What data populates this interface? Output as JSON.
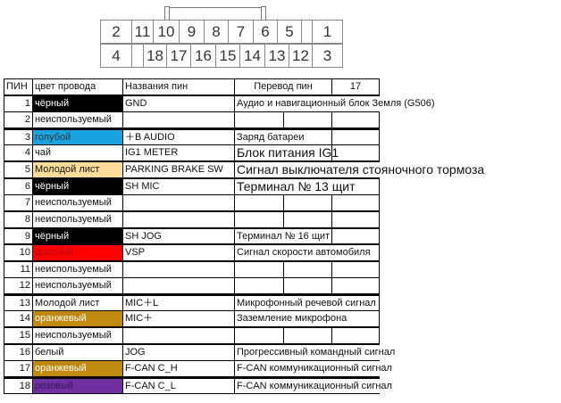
{
  "connector": {
    "left": [
      "2",
      "4"
    ],
    "right": [
      "1",
      "3"
    ],
    "top": [
      "11",
      "10",
      "9",
      "8",
      "7",
      "6",
      "5",
      ""
    ],
    "bottom": [
      "",
      "18",
      "17",
      "16",
      "15",
      "14",
      "13",
      "12"
    ]
  },
  "table": {
    "headers": {
      "pin": "ПИН",
      "color": "цвет провода",
      "name": "Названия пин",
      "translation": "Перевод пин",
      "count": "17"
    },
    "rows": [
      {
        "pin": "1",
        "color": "чёрный",
        "bg": "#000000",
        "fg": "#ffffff",
        "name": "GND",
        "translation": "Аудио и навигационный блок  Земля (G506)"
      },
      {
        "pin": "2",
        "color": "неиспользуемый",
        "bg": "#ffffff",
        "fg": "#111111",
        "name": "",
        "translation": ""
      },
      {
        "pin": "3",
        "color": "голубой",
        "bg": "#1ba3e0",
        "fg": "#333333",
        "name": "＋B AUDIO",
        "translation": "Заряд батареи"
      },
      {
        "pin": "4",
        "color": "чай",
        "bg": "#ffffff",
        "fg": "#111111",
        "name": "IG1 METER",
        "translation": "Блок питания IG1"
      },
      {
        "pin": "5",
        "color": "Молодой лист",
        "bg": "#fddc9b",
        "fg": "#111111",
        "name": "PARKING BRAKE SW",
        "translation": "Сигнал выключателя стояночного тормоза"
      },
      {
        "pin": "6",
        "color": "чёрный",
        "bg": "#000000",
        "fg": "#ffffff",
        "name": "SH MIC",
        "translation": "Терминал № 13 щит"
      },
      {
        "pin": "7",
        "color": "неиспользуемый",
        "bg": "#ffffff",
        "fg": "#111111",
        "name": "",
        "translation": ""
      },
      {
        "pin": "8",
        "color": "неиспользуемый",
        "bg": "#ffffff",
        "fg": "#111111",
        "name": "",
        "translation": ""
      },
      {
        "pin": "9",
        "color": "чёрный",
        "bg": "#000000",
        "fg": "#ffffff",
        "name": "SH JOG",
        "translation": "Терминал № 16 щит"
      },
      {
        "pin": "10",
        "color": "красный",
        "bg": "#ff0000",
        "fg": "#b00000",
        "name": "VSP",
        "translation": "Сигнал скорости автомобиля"
      },
      {
        "pin": "11",
        "color": "неиспользуемый",
        "bg": "#ffffff",
        "fg": "#111111",
        "name": "",
        "translation": ""
      },
      {
        "pin": "12",
        "color": "неиспользуемый",
        "bg": "#ffffff",
        "fg": "#111111",
        "name": "",
        "translation": ""
      },
      {
        "pin": "13",
        "color": "Молодой лист",
        "bg": "#ffffff",
        "fg": "#111111",
        "name": "MIC＋L",
        "translation": "Микрофонный речевой сигнал"
      },
      {
        "pin": "14",
        "color": "оранжевый",
        "bg": "#bf8a0f",
        "fg": "#ffffff",
        "name": "MIC＋",
        "translation": "Заземление микрофона"
      },
      {
        "pin": "15",
        "color": "неиспользуемый",
        "bg": "#ffffff",
        "fg": "#111111",
        "name": "",
        "translation": ""
      },
      {
        "pin": "16",
        "color": "белый",
        "bg": "#ffffff",
        "fg": "#111111",
        "name": "JOG",
        "translation": "Прогрессивный командный сигнал"
      },
      {
        "pin": "17",
        "color": "оранжевый",
        "bg": "#bf8a0f",
        "fg": "#ffffff",
        "name": "F-CAN C_H",
        "translation": "F-CAN коммуникационный сигнал"
      },
      {
        "pin": "18",
        "color": "розовый",
        "bg": "#7030a0",
        "fg": "#3a1560",
        "name": "F-CAN C_L",
        "translation": "F-CAN коммуникационный сигнал"
      }
    ]
  }
}
